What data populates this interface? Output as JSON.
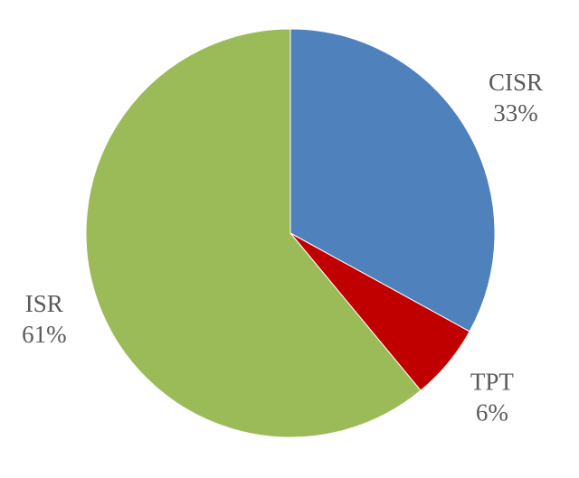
{
  "chart_data": {
    "type": "pie",
    "categories": [
      "CISR",
      "TPT",
      "ISR"
    ],
    "values": [
      33,
      6,
      61
    ],
    "value_labels": [
      "33%",
      "6%",
      "61%"
    ],
    "colors": [
      "#4f81bd",
      "#c00000",
      "#9bbb59"
    ]
  }
}
